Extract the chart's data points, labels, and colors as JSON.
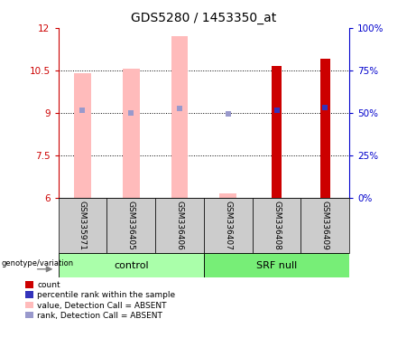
{
  "title": "GDS5280 / 1453350_at",
  "samples": [
    "GSM335971",
    "GSM336405",
    "GSM336406",
    "GSM336407",
    "GSM336408",
    "GSM336409"
  ],
  "ylim_left": [
    6,
    12
  ],
  "ylim_right": [
    0,
    100
  ],
  "yticks_left": [
    6,
    7.5,
    9,
    10.5,
    12
  ],
  "yticks_right": [
    0,
    25,
    50,
    75,
    100
  ],
  "pink_bar_color": "#ffbbbb",
  "red_bar_color": "#cc0000",
  "blue_sq_absent_color": "#9999cc",
  "blue_sq_present_color": "#3333bb",
  "value_absent": [
    10.4,
    10.55,
    11.7,
    6.15,
    null,
    null
  ],
  "rank_absent": [
    9.1,
    9.0,
    9.15,
    8.95,
    null,
    null
  ],
  "count_present": [
    null,
    null,
    null,
    null,
    10.65,
    10.9
  ],
  "rank_present": [
    null,
    null,
    null,
    null,
    9.1,
    9.2
  ],
  "left_axis_color": "#cc0000",
  "right_axis_color": "#0000cc",
  "sample_bg_color": "#cccccc",
  "control_group_color": "#aaffaa",
  "srf_group_color": "#77ee77",
  "gridline_color": "#000000",
  "bar_width": 0.35
}
